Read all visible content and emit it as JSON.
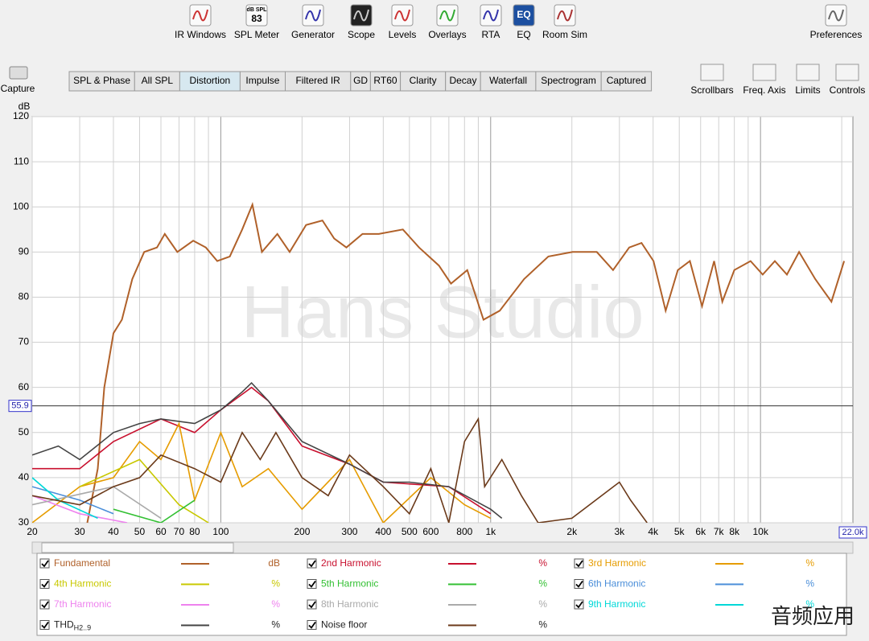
{
  "toolbar": [
    {
      "label": "IR Windows"
    },
    {
      "label": "SPL Meter",
      "icon_text": [
        "dB SPL",
        "83"
      ]
    },
    {
      "label": "Generator"
    },
    {
      "label": "Scope"
    },
    {
      "label": "Levels"
    },
    {
      "label": "Overlays"
    },
    {
      "label": "RTA"
    },
    {
      "label": "EQ",
      "icon_text": [
        "EQ"
      ]
    },
    {
      "label": "Room Sim"
    },
    {
      "label": "Preferences"
    }
  ],
  "capture": "Capture",
  "tabs": {
    "items": [
      "SPL & Phase",
      "All SPL",
      "Distortion",
      "Impulse",
      "Filtered IR",
      "GD",
      "RT60",
      "Clarity",
      "Decay",
      "Waterfall",
      "Spectrogram",
      "Captured"
    ],
    "active": 2
  },
  "view_controls": [
    "Scrollbars",
    "Freq. Axis",
    "Limits",
    "Controls"
  ],
  "watermarks": [
    "Hans Studio",
    "音频应用"
  ],
  "chart_data": {
    "type": "line",
    "y_label": "dB",
    "log_x": true,
    "grid": true,
    "xlim": [
      20,
      22000
    ],
    "xmax_label": "22.0k",
    "ylim": [
      30,
      120
    ],
    "xticks": [
      20,
      30,
      40,
      50,
      60,
      70,
      80,
      100,
      200,
      300,
      400,
      500,
      600,
      800,
      {
        "value": 1000,
        "label": "1k"
      },
      {
        "value": 2000,
        "label": "2k"
      },
      {
        "value": 3000,
        "label": "3k"
      },
      {
        "value": 4000,
        "label": "4k"
      },
      {
        "value": 5000,
        "label": "5k"
      },
      {
        "value": 6000,
        "label": "6k"
      },
      {
        "value": 7000,
        "label": "7k"
      },
      {
        "value": 8000,
        "label": "8k"
      },
      {
        "value": 10000,
        "label": "10k"
      }
    ],
    "xminor": [
      90,
      700,
      900,
      9000,
      20000
    ],
    "yticks": [
      30,
      40,
      50,
      60,
      70,
      80,
      90,
      100,
      110,
      120
    ],
    "cursor": 55.9,
    "series": [
      {
        "name": "Fundamental",
        "unit": "dB",
        "color": "#b0612a",
        "x": [
          32,
          35,
          37,
          40,
          43,
          47,
          52,
          58,
          62,
          69,
          79,
          88,
          97,
          108,
          120,
          131,
          142,
          162,
          180,
          207,
          238,
          263,
          292,
          335,
          385,
          473,
          543,
          643,
          713,
          819,
          941,
          1081,
          1330,
          1636,
          2012,
          2474,
          2841,
          3263,
          3623,
          4015,
          4453,
          4938,
          5476,
          6072,
          6733,
          7219,
          7999,
          9188,
          10190,
          11300,
          12530,
          13900,
          15950,
          18320,
          20420
        ],
        "values": [
          30,
          42,
          60,
          72,
          75,
          84,
          90,
          91,
          94,
          90,
          92.5,
          91,
          88,
          89,
          95,
          100.5,
          90,
          94,
          90,
          96,
          97,
          93,
          91,
          94,
          94,
          95,
          91,
          87,
          83,
          86,
          75,
          77,
          84,
          89,
          90,
          90,
          86,
          91,
          92,
          88,
          77,
          86,
          88,
          78,
          88,
          79,
          86,
          88,
          85,
          88,
          85,
          90,
          84,
          79,
          88
        ]
      },
      {
        "name": "2nd Harmonic",
        "unit": "%",
        "color": "#c8102e",
        "x": [
          20,
          30,
          40,
          60,
          80,
          100,
          130,
          150,
          200,
          300,
          400,
          700,
          1000
        ],
        "values": [
          42,
          42,
          48,
          53,
          50,
          55,
          60,
          57,
          47,
          43,
          39,
          38,
          32
        ]
      },
      {
        "name": "3rd Harmonic",
        "unit": "%",
        "color": "#e69c00",
        "x": [
          20,
          30,
          40,
          50,
          60,
          70,
          80,
          100,
          120,
          150,
          200,
          300,
          400,
          600,
          800,
          1000
        ],
        "values": [
          30,
          38,
          40,
          48,
          44,
          52,
          35,
          50,
          38,
          42,
          33,
          44,
          30,
          40,
          34,
          31
        ]
      },
      {
        "name": "4th Harmonic",
        "unit": "%",
        "color": "#c8c800",
        "x": [
          30,
          50,
          70,
          90
        ],
        "values": [
          38,
          44,
          34,
          30
        ]
      },
      {
        "name": "5th Harmonic",
        "unit": "%",
        "color": "#33c033",
        "x": [
          40,
          60,
          80
        ],
        "values": [
          33,
          30,
          35
        ]
      },
      {
        "name": "6th Harmonic",
        "unit": "%",
        "color": "#4a8ed9",
        "x": [
          20,
          30,
          40
        ],
        "values": [
          38,
          35,
          32
        ]
      },
      {
        "name": "7th Harmonic",
        "unit": "%",
        "color": "#ee82ee",
        "x": [
          20,
          30,
          45
        ],
        "values": [
          36,
          32,
          30
        ]
      },
      {
        "name": "8th Harmonic",
        "unit": "%",
        "color": "#aaaaaa",
        "x": [
          20,
          40,
          60
        ],
        "values": [
          34,
          38,
          31
        ]
      },
      {
        "name": "9th Harmonic",
        "unit": "%",
        "color": "#00d8d8",
        "x": [
          20,
          25,
          35
        ],
        "values": [
          40,
          35,
          31
        ]
      },
      {
        "name": "THD",
        "name_sub": "H2..9",
        "unit": "%",
        "color": "#444444",
        "x": [
          20,
          25,
          30,
          40,
          50,
          60,
          80,
          100,
          120,
          130,
          150,
          200,
          300,
          400,
          500,
          700,
          1000,
          1100
        ],
        "values": [
          45,
          47,
          44,
          50,
          52,
          53,
          52,
          55,
          59,
          61,
          57,
          48,
          43,
          39,
          39,
          38,
          33,
          31
        ]
      },
      {
        "name": "Noise floor",
        "unit": "%",
        "color": "#6b3a1a",
        "x": [
          20,
          30,
          40,
          50,
          60,
          80,
          100,
          120,
          140,
          160,
          200,
          250,
          300,
          400,
          500,
          600,
          700,
          800,
          900,
          950,
          1100,
          1300,
          1500,
          2000,
          3000,
          3300,
          3800
        ],
        "values": [
          36,
          34,
          38,
          40,
          45,
          42,
          39,
          50,
          44,
          50,
          40,
          36,
          45,
          38,
          32,
          42,
          30,
          48,
          53,
          38,
          44,
          36,
          30,
          31,
          39,
          35,
          30
        ]
      }
    ]
  }
}
